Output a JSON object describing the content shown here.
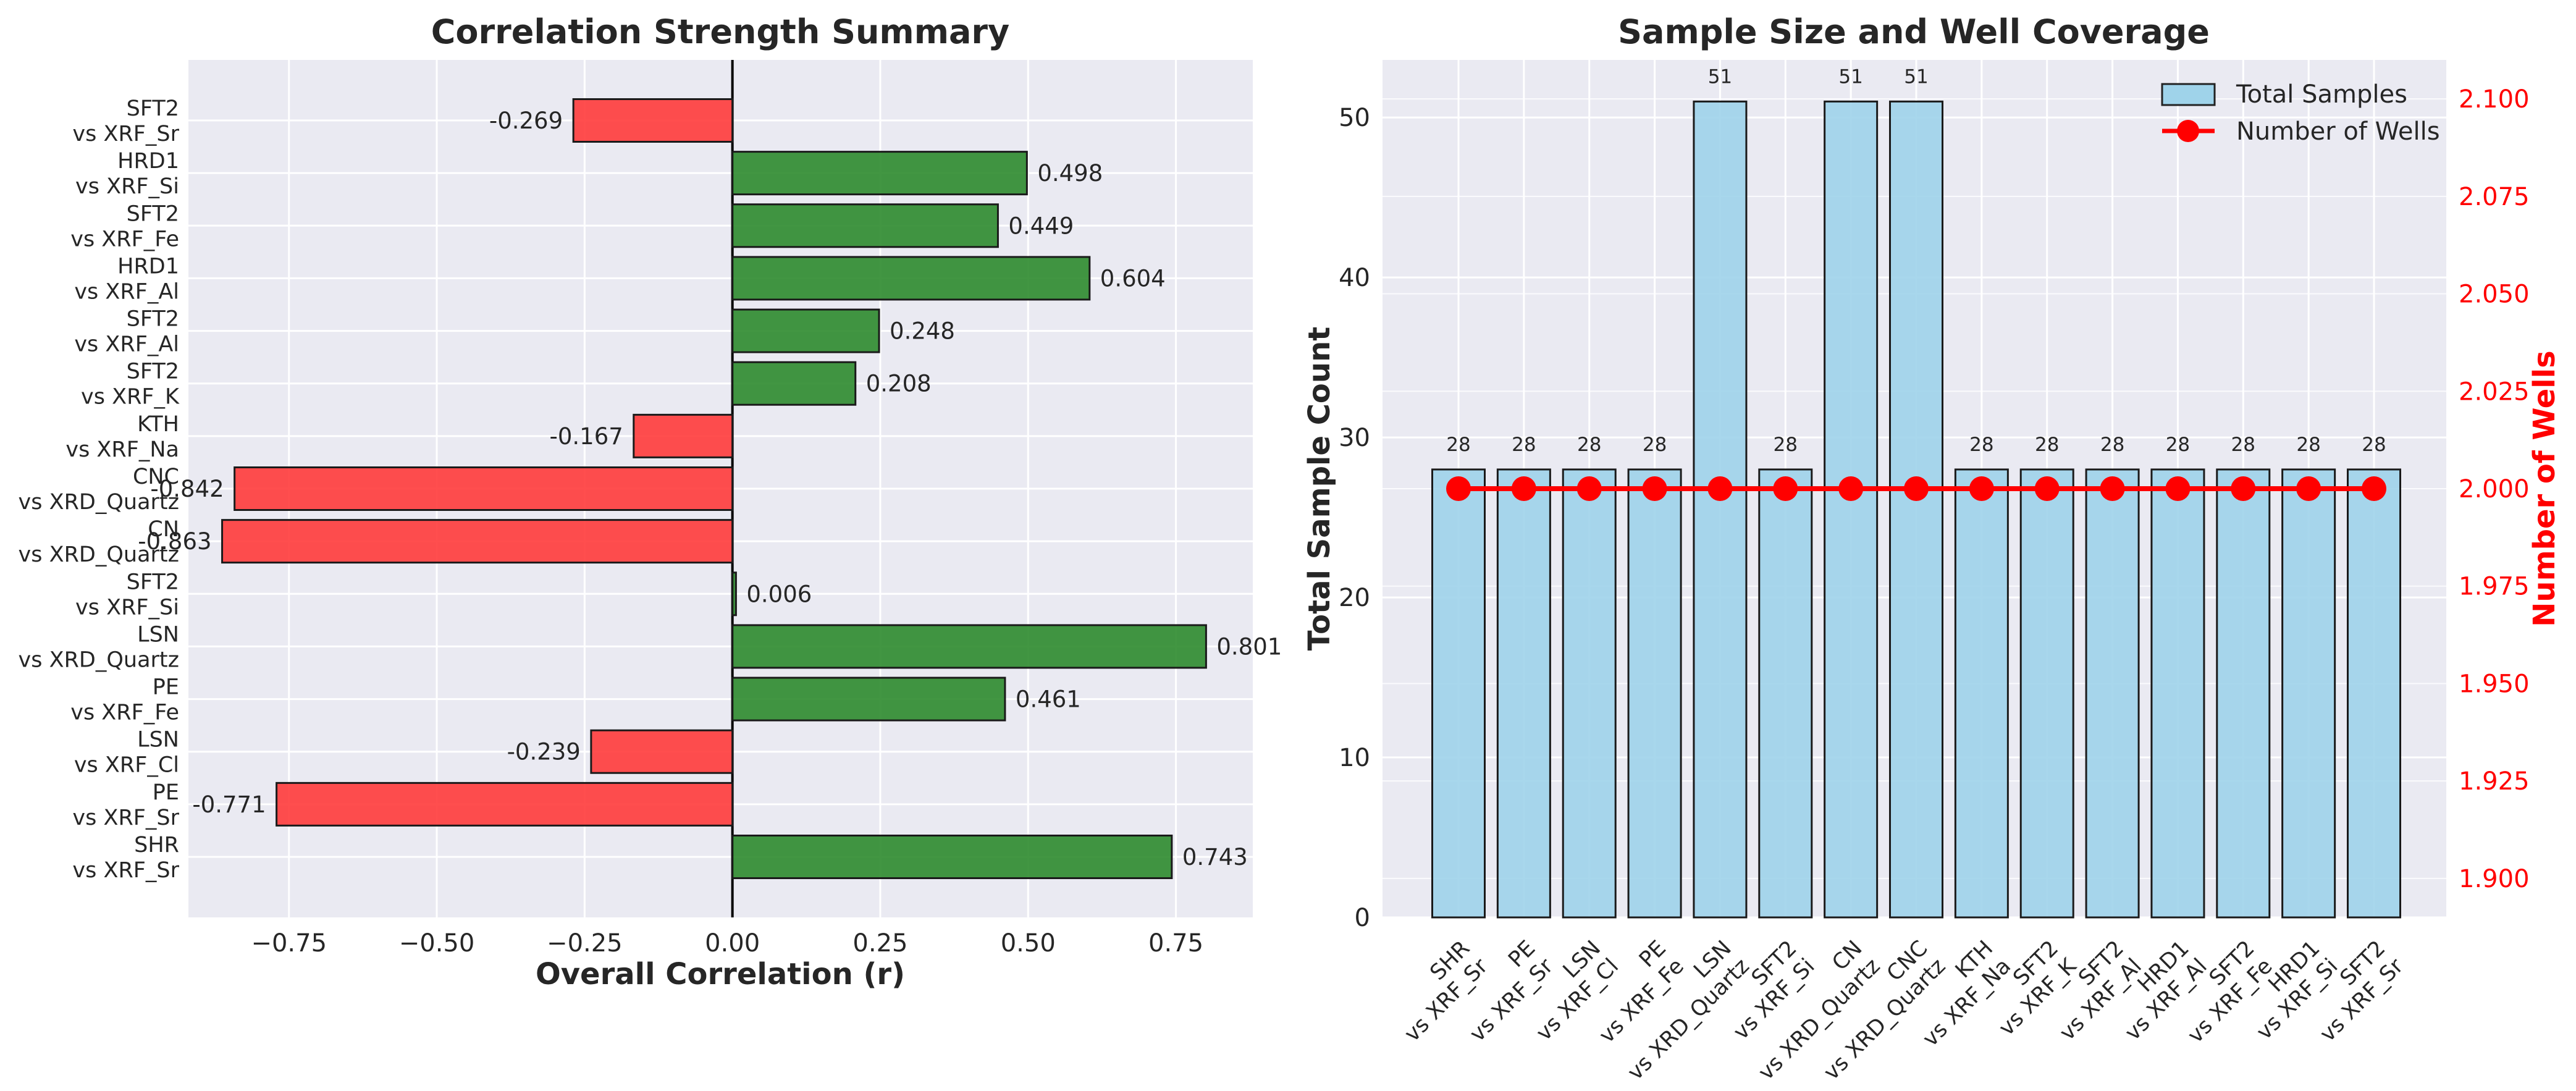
{
  "colors": {
    "positive": "#2e8b2e",
    "negative": "#ff3b3b",
    "samples_bar": "#9fd3ea",
    "wells_line": "#ff0000",
    "plot_bg": "#eaeaf2",
    "grid": "#ffffff"
  },
  "chart_data": [
    {
      "type": "bar",
      "orientation": "horizontal",
      "title": "Correlation Strength Summary",
      "xlabel": "Overall Correlation (r)",
      "ylabel": "",
      "xlim": [
        -0.92,
        0.88
      ],
      "xticks": [
        "−0.75",
        "−0.50",
        "−0.25",
        "0.00",
        "0.25",
        "0.50",
        "0.75"
      ],
      "xtick_values": [
        -0.75,
        -0.5,
        -0.25,
        0,
        0.25,
        0.5,
        0.75
      ],
      "categories": [
        "SHR\nvs XRF_Sr",
        "PE\nvs XRF_Sr",
        "LSN\nvs XRF_Cl",
        "PE\nvs XRF_Fe",
        "LSN\nvs XRD_Quartz",
        "SFT2\nvs XRF_Si",
        "CN\nvs XRD_Quartz",
        "CNC\nvs XRD_Quartz",
        "KTH\nvs XRF_Na",
        "SFT2\nvs XRF_K",
        "SFT2\nvs XRF_Al",
        "HRD1\nvs XRF_Al",
        "SFT2\nvs XRF_Fe",
        "HRD1\nvs XRF_Si",
        "SFT2\nvs XRF_Sr"
      ],
      "values": [
        0.743,
        -0.771,
        -0.239,
        0.461,
        0.801,
        0.006,
        -0.863,
        -0.842,
        -0.167,
        0.208,
        0.248,
        0.604,
        0.449,
        0.498,
        -0.269
      ],
      "labels": [
        "0.743",
        "-0.771",
        "-0.239",
        "0.461",
        "0.801",
        "0.006",
        "-0.863",
        "-0.842",
        "-0.167",
        "0.208",
        "0.248",
        "0.604",
        "0.449",
        "0.498",
        "-0.269"
      ],
      "grid": true
    },
    {
      "type": "bar",
      "title": "Sample Size and Well Coverage",
      "xlabel": "",
      "ylabel": "Total Sample Count",
      "y2label": "Number of Wells",
      "ylim": [
        0,
        53.6
      ],
      "y2lim": [
        1.89,
        2.11
      ],
      "yticks": [
        0,
        10,
        20,
        30,
        40,
        50
      ],
      "y2ticks": [
        "1.900",
        "1.925",
        "1.950",
        "1.975",
        "2.000",
        "2.025",
        "2.050",
        "2.075",
        "2.100"
      ],
      "y2tick_values": [
        1.9,
        1.925,
        1.95,
        1.975,
        2.0,
        2.025,
        2.05,
        2.075,
        2.1
      ],
      "categories": [
        "SHR\nvs XRF_Sr",
        "PE\nvs XRF_Sr",
        "LSN\nvs XRF_Cl",
        "PE\nvs XRF_Fe",
        "LSN\nvs XRD_Quartz",
        "SFT2\nvs XRF_Si",
        "CN\nvs XRD_Quartz",
        "CNC\nvs XRD_Quartz",
        "KTH\nvs XRF_Na",
        "SFT2\nvs XRF_K",
        "SFT2\nvs XRF_Al",
        "HRD1\nvs XRF_Al",
        "SFT2\nvs XRF_Fe",
        "HRD1\nvs XRF_Si",
        "SFT2\nvs XRF_Sr"
      ],
      "series": [
        {
          "name": "Total Samples",
          "type": "bar",
          "axis": "left",
          "values": [
            28,
            28,
            28,
            28,
            51,
            28,
            51,
            51,
            28,
            28,
            28,
            28,
            28,
            28,
            28
          ]
        },
        {
          "name": "Number of Wells",
          "type": "line",
          "axis": "right",
          "values": [
            2,
            2,
            2,
            2,
            2,
            2,
            2,
            2,
            2,
            2,
            2,
            2,
            2,
            2,
            2
          ]
        }
      ],
      "legend": "top-right",
      "grid": true
    }
  ]
}
